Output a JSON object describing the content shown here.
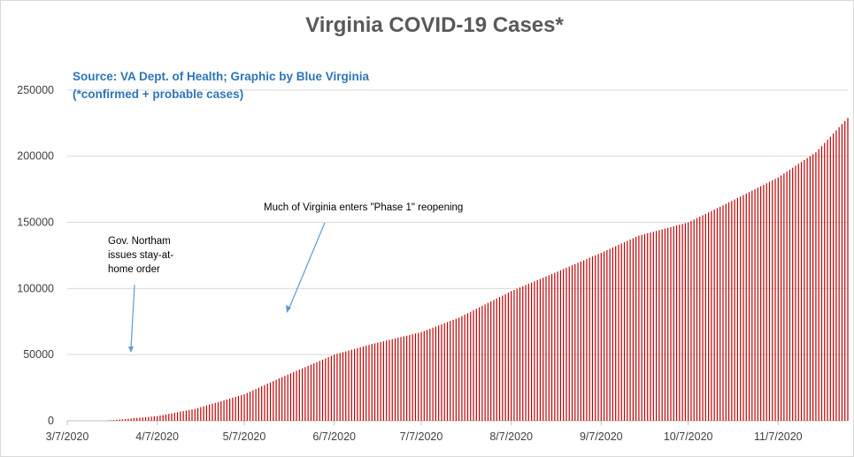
{
  "chart_data": {
    "type": "bar",
    "title": "Virginia COVID-19 Cases*",
    "source_lines": [
      "Source: VA Dept. of Health; Graphic by Blue Virginia",
      "(*confirmed + probable cases)"
    ],
    "xlabel": "",
    "ylabel": "",
    "x_start": "3/7/2020",
    "x_end": "12/1/2020",
    "ylim": [
      0,
      270000
    ],
    "y_ticks": [
      0,
      50000,
      100000,
      150000,
      200000,
      250000
    ],
    "x_ticks": [
      "3/7/2020",
      "4/7/2020",
      "5/7/2020",
      "6/7/2020",
      "7/7/2020",
      "8/7/2020",
      "9/7/2020",
      "10/7/2020",
      "11/7/2020"
    ],
    "grid": true,
    "bar_color": "#c00000",
    "series": [
      {
        "dates": [
          "3/20/2020",
          "4/7/2020",
          "4/20/2020",
          "5/7/2020",
          "5/20/2020",
          "6/7/2020",
          "6/20/2020",
          "7/7/2020",
          "7/20/2020",
          "8/7/2020",
          "8/20/2020",
          "9/7/2020",
          "9/20/2020",
          "10/7/2020",
          "10/20/2020",
          "11/7/2020",
          "11/20/2020",
          "12/1/2020"
        ],
        "values": [
          0,
          3500,
          9000,
          20000,
          33000,
          50000,
          58000,
          67000,
          78000,
          98000,
          110000,
          127000,
          140000,
          150000,
          164000,
          184000,
          203000,
          229000
        ]
      }
    ],
    "annotations": [
      {
        "lines": [
          "Gov. Northam",
          "issues stay-at-",
          "home order"
        ],
        "date": "3/30/2020"
      },
      {
        "lines": [
          "Much of Virginia enters \"Phase 1\" reopening"
        ],
        "date": "5/15/2020"
      }
    ]
  }
}
